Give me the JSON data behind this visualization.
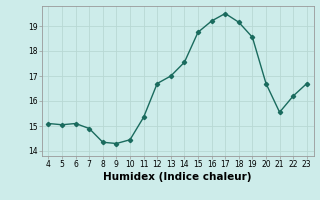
{
  "x": [
    4,
    5,
    6,
    7,
    8,
    9,
    10,
    11,
    12,
    13,
    14,
    15,
    16,
    17,
    18,
    19,
    20,
    21,
    22,
    23
  ],
  "y": [
    15.1,
    15.05,
    15.1,
    14.9,
    14.35,
    14.3,
    14.45,
    15.35,
    16.7,
    17.0,
    17.55,
    18.75,
    19.2,
    19.5,
    19.15,
    18.55,
    16.7,
    15.55,
    16.2,
    16.7
  ],
  "line_color": "#1a6b5e",
  "marker": "D",
  "marker_size": 2.2,
  "bg_color": "#cdecea",
  "grid_color": "#b8d8d4",
  "xlabel": "Humidex (Indice chaleur)",
  "xlim": [
    3.5,
    23.5
  ],
  "ylim": [
    13.8,
    19.8
  ],
  "yticks": [
    14,
    15,
    16,
    17,
    18,
    19
  ],
  "xticks": [
    4,
    5,
    6,
    7,
    8,
    9,
    10,
    11,
    12,
    13,
    14,
    15,
    16,
    17,
    18,
    19,
    20,
    21,
    22,
    23
  ],
  "tick_fontsize": 5.5,
  "xlabel_fontsize": 7.5,
  "line_width": 1.0
}
